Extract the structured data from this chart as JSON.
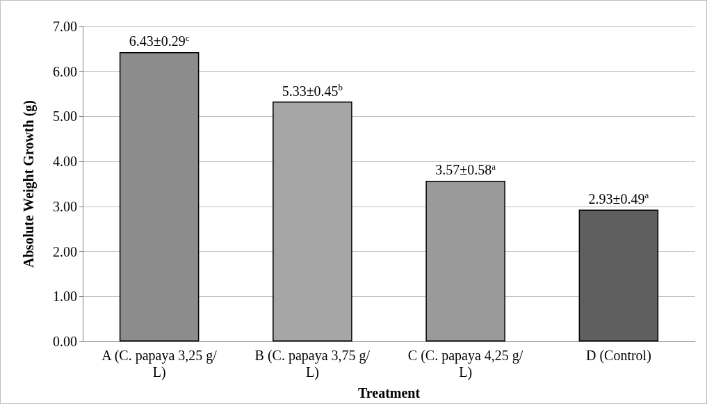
{
  "chart_data": {
    "type": "bar",
    "xlabel": "Treatment",
    "ylabel": "Absolute Weight Growth (g)",
    "categories": [
      "A (C. papaya 3,25 g/L)",
      "B (C. papaya 3,75 g/L)",
      "C (C. papaya 4,25 g/L)",
      "D (Control)"
    ],
    "values": [
      6.43,
      5.33,
      3.57,
      2.93
    ],
    "colors": [
      "#8c8c8c",
      "#a6a6a6",
      "#9a9a9a",
      "#5f5f5f"
    ],
    "value_labels": [
      "6.43±0.29$^{c}$",
      "5.33±0.45$^{b}$",
      "3.57±0.58$^{a}$",
      "2.93±0.49$^{a}$"
    ],
    "ylim": [
      0,
      7
    ],
    "yticks": [
      {
        "value": 0,
        "label": "0.00"
      },
      {
        "value": 1,
        "label": "1.00"
      },
      {
        "value": 2,
        "label": "2.00"
      },
      {
        "value": 3,
        "label": "3.00"
      },
      {
        "value": 4,
        "label": "4.00"
      },
      {
        "value": 5,
        "label": "5.00"
      },
      {
        "value": 6,
        "label": "6.00"
      },
      {
        "value": 7,
        "label": "7.00"
      }
    ],
    "grid": "y"
  }
}
